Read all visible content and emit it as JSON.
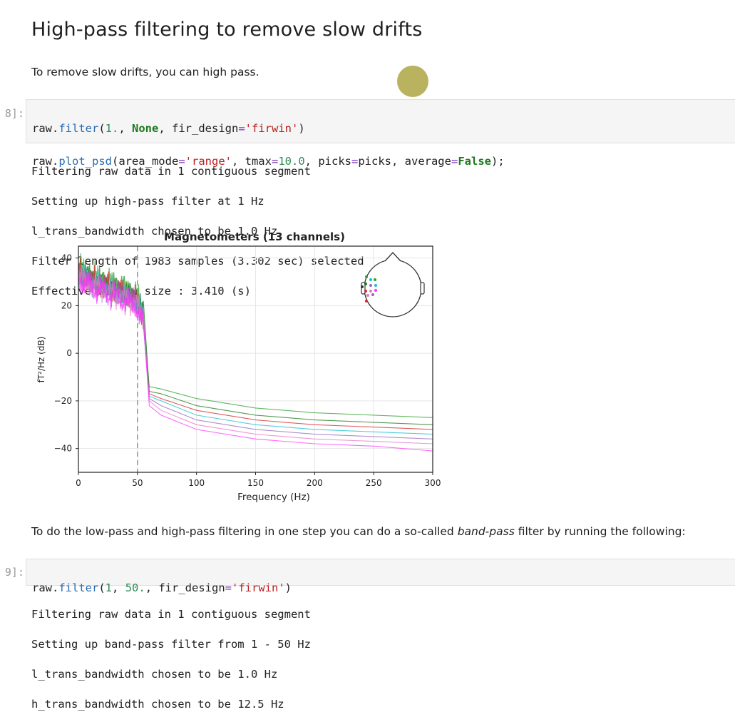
{
  "heading": "High-pass filtering to remove slow drifts",
  "para1": "To remove slow drifts, you can high pass.",
  "cell1": {
    "prompt": "8]:",
    "line1": {
      "t1": "raw.",
      "t2": "filter",
      "t3": "(",
      "t4": "1.",
      "t5": ", ",
      "t6": "None",
      "t7": ", fir_design",
      "t8": "=",
      "t9": "'firwin'",
      "t10": ")"
    },
    "line2": {
      "t1": "raw.",
      "t2": "plot_psd",
      "t3": "(area_mode",
      "t4": "=",
      "t5": "'range'",
      "t6": ", tmax",
      "t7": "=",
      "t8": "10.0",
      "t9": ", picks",
      "t10": "=",
      "t11": "picks, average",
      "t12": "=",
      "t13": "False",
      "t14": ");"
    }
  },
  "output1": [
    "Filtering raw data in 1 contiguous segment",
    "Setting up high-pass filter at 1 Hz",
    "l_trans_bandwidth chosen to be 1.0 Hz",
    "Filter length of 1983 samples (3.302 sec) selected",
    "Effective window size : 3.410 (s)"
  ],
  "chart_data": {
    "type": "line",
    "title": "Magnetometers (13 channels)",
    "xlabel": "Frequency (Hz)",
    "ylabel": "fT²/Hz (dB)",
    "xlim": [
      0,
      300
    ],
    "ylim": [
      -50,
      45
    ],
    "x_ticks": [
      "0",
      "50",
      "100",
      "150",
      "200",
      "250",
      "300"
    ],
    "y_ticks": [
      "40",
      "20",
      "0",
      "−20",
      "−40"
    ],
    "grid": true,
    "cutoff_line_x": 50,
    "x": [
      0,
      10,
      20,
      30,
      40,
      50,
      55,
      60,
      70,
      100,
      150,
      200,
      250,
      300
    ],
    "series": [
      {
        "color": "#2ca02c",
        "values": [
          36,
          33,
          31,
          29,
          27,
          24,
          18,
          -14,
          -15,
          -19,
          -23,
          -25,
          -26,
          -27
        ]
      },
      {
        "color": "#1a7a1a",
        "values": [
          35,
          32,
          30,
          28,
          26,
          23,
          17,
          -16,
          -17,
          -22,
          -26,
          -28,
          -29,
          -30
        ]
      },
      {
        "color": "#d62728",
        "values": [
          34,
          31,
          29,
          27,
          25,
          22,
          16,
          -17,
          -19,
          -24,
          -28,
          -30,
          -31,
          -32
        ]
      },
      {
        "color": "#17becf",
        "values": [
          33,
          30,
          28,
          26,
          24,
          21,
          15,
          -18,
          -20,
          -26,
          -30,
          -32,
          -33,
          -34
        ]
      },
      {
        "color": "#9467bd",
        "values": [
          33,
          30,
          28,
          26,
          24,
          21,
          15,
          -19,
          -22,
          -28,
          -32,
          -34,
          -35,
          -36
        ]
      },
      {
        "color": "#e377c2",
        "values": [
          32,
          29,
          27,
          25,
          23,
          20,
          14,
          -20,
          -24,
          -30,
          -34,
          -36,
          -37,
          -38
        ]
      },
      {
        "color": "#ff33ff",
        "values": [
          31,
          28,
          26,
          24,
          22,
          19,
          13,
          -22,
          -26,
          -32,
          -36,
          -38,
          -39,
          -41
        ]
      }
    ]
  },
  "para2": {
    "before": "To do the low-pass and high-pass filtering in one step you can do a so-called ",
    "italic": "band-pass",
    "after": " filter by running the following:"
  },
  "cell2": {
    "prompt": "9]:",
    "t1": "raw.",
    "t2": "filter",
    "t3": "(",
    "t4": "1",
    "t5": ", ",
    "t6": "50.",
    "t7": ", fir_design",
    "t8": "=",
    "t9": "'firwin'",
    "t10": ")"
  },
  "output2": [
    "Filtering raw data in 1 contiguous segment",
    "Setting up band-pass filter from 1 - 50 Hz",
    "l_trans_bandwidth chosen to be 1.0 Hz",
    "h_trans_bandwidth chosen to be 12.5 Hz"
  ]
}
